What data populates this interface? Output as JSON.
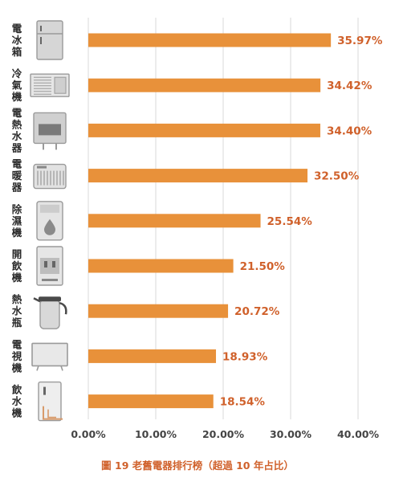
{
  "caption": "圖 19 老舊電器排行榜（超過 10 年占比）",
  "colors": {
    "bar": "#e8913a",
    "value_label": "#d0612b",
    "grid": "#d9d9d9",
    "icon": "#9a9a9a"
  },
  "chart_data": {
    "type": "bar",
    "orientation": "horizontal",
    "categories": [
      "電冰箱",
      "冷氣機",
      "電熱水器",
      "電暖器",
      "除濕機",
      "開飲機",
      "熱水瓶",
      "電視機",
      "飲水機"
    ],
    "category_icons": [
      "refrigerator-icon",
      "air-conditioner-icon",
      "water-heater-icon",
      "space-heater-icon",
      "dehumidifier-icon",
      "water-dispenser-icon",
      "thermos-icon",
      "television-icon",
      "drinking-fountain-icon"
    ],
    "values": [
      35.97,
      34.42,
      34.4,
      32.5,
      25.54,
      21.5,
      20.72,
      18.93,
      18.54
    ],
    "value_labels": [
      "35.97%",
      "34.42%",
      "34.40%",
      "32.50%",
      "25.54%",
      "21.50%",
      "20.72%",
      "18.93%",
      "18.54%"
    ],
    "xlim": [
      0,
      40
    ],
    "xticks": [
      0,
      10,
      20,
      30,
      40
    ],
    "xtick_labels": [
      "0.00%",
      "10.00%",
      "20.00%",
      "30.00%",
      "40.00%"
    ],
    "grid": true,
    "legend": "none"
  }
}
